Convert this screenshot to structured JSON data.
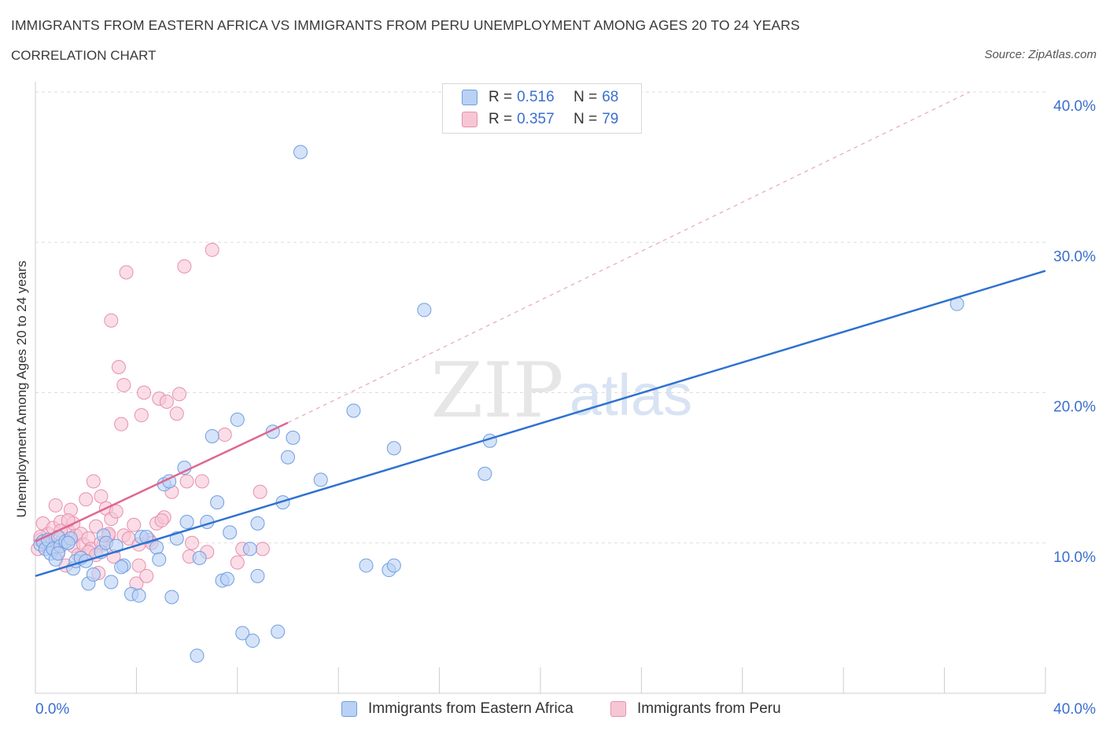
{
  "header": {
    "title": "IMMIGRANTS FROM EASTERN AFRICA VS IMMIGRANTS FROM PERU UNEMPLOYMENT AMONG AGES 20 TO 24 YEARS",
    "subtitle": "CORRELATION CHART",
    "source": "Source: ZipAtlas.com"
  },
  "watermark": {
    "zip": "ZIP",
    "atlas": "atlas"
  },
  "legend_top": [
    {
      "r_label": "R =",
      "r_value": "0.516",
      "n_label": "N =",
      "n_value": "68"
    },
    {
      "r_label": "R =",
      "r_value": "0.357",
      "n_label": "N =",
      "n_value": "79"
    }
  ],
  "legend_bottom": [
    {
      "label": "Immigrants from Eastern Africa"
    },
    {
      "label": "Immigrants from Peru"
    }
  ],
  "colors": {
    "blue_fill": "#b9d1f5",
    "blue_stroke": "#6f9ee0",
    "blue_line": "#2f72d0",
    "pink_fill": "#f7c6d5",
    "pink_stroke": "#e88fae",
    "pink_line": "#e06690",
    "grid": "#dddddd",
    "axis_text": "#3a6fcf"
  },
  "chart_data": {
    "type": "scatter",
    "title": "IMMIGRANTS FROM EASTERN AFRICA VS IMMIGRANTS FROM PERU UNEMPLOYMENT AMONG AGES 20 TO 24 YEARS",
    "xlabel": "",
    "ylabel": "Unemployment Among Ages 20 to 24 years",
    "xlim": [
      0,
      40
    ],
    "ylim": [
      0,
      40
    ],
    "x_tick_labels": [
      "0.0%",
      "40.0%"
    ],
    "y_ticks": [
      10,
      20,
      30,
      40
    ],
    "y_tick_labels": [
      "10.0%",
      "20.0%",
      "30.0%",
      "40.0%"
    ],
    "series": [
      {
        "name": "Immigrants from Eastern Africa",
        "R": 0.516,
        "N": 68,
        "trend": {
          "x": [
            0,
            40
          ],
          "y": [
            7.8,
            28.1
          ],
          "style": "solid"
        },
        "points": [
          [
            0.2,
            9.9
          ],
          [
            0.3,
            10.1
          ],
          [
            0.4,
            9.6
          ],
          [
            0.5,
            10.2
          ],
          [
            0.6,
            9.3
          ],
          [
            0.7,
            9.6
          ],
          [
            0.8,
            8.9
          ],
          [
            0.9,
            10.4
          ],
          [
            1.0,
            9.8
          ],
          [
            1.2,
            10.1
          ],
          [
            1.4,
            10.3
          ],
          [
            1.5,
            8.3
          ],
          [
            1.6,
            8.8
          ],
          [
            1.8,
            9.0
          ],
          [
            2.1,
            7.3
          ],
          [
            2.3,
            7.9
          ],
          [
            2.6,
            9.4
          ],
          [
            2.7,
            10.5
          ],
          [
            2.8,
            10.0
          ],
          [
            3.0,
            7.4
          ],
          [
            3.2,
            9.8
          ],
          [
            3.5,
            8.5
          ],
          [
            3.8,
            6.6
          ],
          [
            4.1,
            6.5
          ],
          [
            4.2,
            10.4
          ],
          [
            4.4,
            10.4
          ],
          [
            4.8,
            9.7
          ],
          [
            4.9,
            8.9
          ],
          [
            5.1,
            13.9
          ],
          [
            5.3,
            14.1
          ],
          [
            5.4,
            6.4
          ],
          [
            5.6,
            10.3
          ],
          [
            5.9,
            15.0
          ],
          [
            6.0,
            11.4
          ],
          [
            6.4,
            2.5
          ],
          [
            6.5,
            9.0
          ],
          [
            6.8,
            11.4
          ],
          [
            7.0,
            17.1
          ],
          [
            7.2,
            12.7
          ],
          [
            7.4,
            7.5
          ],
          [
            7.6,
            7.6
          ],
          [
            7.7,
            10.7
          ],
          [
            8.0,
            18.2
          ],
          [
            8.2,
            4.0
          ],
          [
            8.5,
            9.6
          ],
          [
            8.6,
            3.5
          ],
          [
            8.8,
            11.3
          ],
          [
            8.8,
            7.8
          ],
          [
            9.4,
            17.4
          ],
          [
            9.6,
            4.1
          ],
          [
            9.8,
            12.7
          ],
          [
            10.0,
            15.7
          ],
          [
            10.2,
            17.0
          ],
          [
            11.3,
            14.2
          ],
          [
            12.6,
            18.8
          ],
          [
            13.1,
            8.5
          ],
          [
            14.0,
            8.2
          ],
          [
            14.2,
            8.5
          ],
          [
            14.2,
            16.3
          ],
          [
            15.4,
            25.5
          ],
          [
            17.8,
            14.6
          ],
          [
            18.0,
            16.8
          ],
          [
            36.5,
            25.9
          ],
          [
            10.5,
            36.0
          ],
          [
            0.9,
            9.3
          ],
          [
            1.3,
            10.0
          ],
          [
            2.0,
            8.8
          ],
          [
            3.4,
            8.4
          ]
        ]
      },
      {
        "name": "Immigrants from Peru",
        "R": 0.357,
        "N": 79,
        "trend": {
          "x": [
            0,
            10
          ],
          "y": [
            10.1,
            18.0
          ],
          "style": "solid",
          "extended": {
            "x": [
              10,
              37
            ],
            "y": [
              18.0,
              40.0
            ],
            "style": "dashed"
          }
        },
        "points": [
          [
            0.1,
            9.6
          ],
          [
            0.2,
            10.2
          ],
          [
            0.3,
            11.3
          ],
          [
            0.4,
            9.8
          ],
          [
            0.5,
            10.6
          ],
          [
            0.6,
            10.0
          ],
          [
            0.7,
            11.0
          ],
          [
            0.8,
            12.5
          ],
          [
            0.9,
            9.4
          ],
          [
            1.0,
            11.4
          ],
          [
            1.1,
            10.3
          ],
          [
            1.2,
            8.5
          ],
          [
            1.3,
            10.8
          ],
          [
            1.4,
            12.2
          ],
          [
            1.5,
            9.8
          ],
          [
            1.6,
            10.5
          ],
          [
            1.7,
            9.2
          ],
          [
            1.8,
            10.6
          ],
          [
            1.9,
            9.9
          ],
          [
            2.0,
            12.9
          ],
          [
            2.1,
            10.3
          ],
          [
            2.2,
            9.6
          ],
          [
            2.3,
            14.1
          ],
          [
            2.4,
            11.1
          ],
          [
            2.5,
            8.0
          ],
          [
            2.6,
            13.1
          ],
          [
            2.7,
            9.9
          ],
          [
            2.8,
            12.3
          ],
          [
            2.9,
            10.5
          ],
          [
            3.0,
            11.6
          ],
          [
            3.1,
            9.1
          ],
          [
            3.2,
            12.1
          ],
          [
            3.3,
            21.7
          ],
          [
            3.4,
            17.9
          ],
          [
            3.5,
            10.5
          ],
          [
            3.6,
            28.0
          ],
          [
            3.7,
            10.3
          ],
          [
            3.9,
            11.2
          ],
          [
            4.0,
            7.3
          ],
          [
            4.1,
            8.5
          ],
          [
            4.2,
            18.5
          ],
          [
            4.3,
            20.0
          ],
          [
            4.4,
            7.8
          ],
          [
            4.5,
            10.2
          ],
          [
            4.6,
            10.0
          ],
          [
            4.8,
            11.3
          ],
          [
            4.9,
            19.6
          ],
          [
            5.1,
            11.7
          ],
          [
            5.2,
            19.4
          ],
          [
            5.4,
            13.4
          ],
          [
            5.6,
            18.6
          ],
          [
            5.7,
            19.9
          ],
          [
            5.9,
            28.4
          ],
          [
            6.0,
            14.1
          ],
          [
            6.1,
            9.1
          ],
          [
            6.2,
            10.0
          ],
          [
            6.6,
            14.1
          ],
          [
            6.8,
            9.4
          ],
          [
            7.0,
            29.5
          ],
          [
            7.5,
            17.2
          ],
          [
            8.0,
            8.7
          ],
          [
            8.2,
            9.6
          ],
          [
            8.9,
            13.4
          ],
          [
            9.0,
            9.6
          ],
          [
            1.0,
            10.8
          ],
          [
            1.5,
            11.3
          ],
          [
            2.1,
            9.4
          ],
          [
            2.6,
            10.0
          ],
          [
            3.0,
            24.8
          ],
          [
            3.5,
            20.5
          ],
          [
            4.1,
            9.9
          ],
          [
            5.0,
            11.5
          ],
          [
            0.4,
            10.0
          ],
          [
            0.7,
            9.7
          ],
          [
            1.3,
            11.5
          ],
          [
            1.8,
            9.0
          ],
          [
            2.4,
            9.2
          ],
          [
            2.9,
            10.6
          ],
          [
            0.2,
            10.4
          ]
        ]
      }
    ]
  }
}
